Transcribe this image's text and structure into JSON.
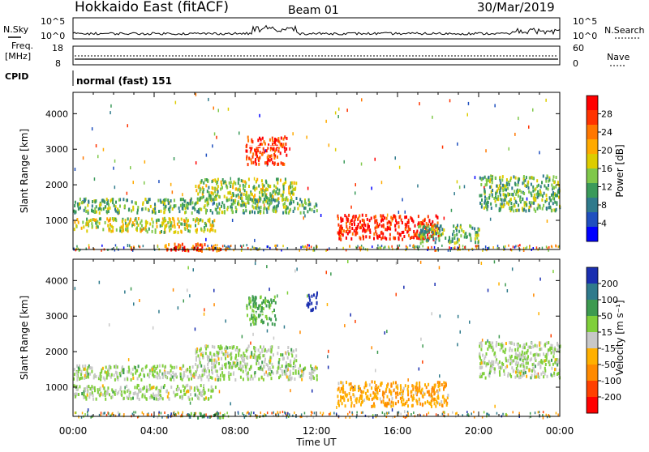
{
  "header": {
    "site": "Hokkaido East (fitACF)",
    "beam": "Beam 01",
    "date": "30/Mar/2019"
  },
  "noise_panel": {
    "left_label": "N.Sky",
    "right_label": "N.Search",
    "scale_top": "10^5",
    "scale_bottom": "10^0"
  },
  "freq_panel": {
    "label_line1": "Freq.",
    "label_line2": "[MHz]",
    "tick_top": "18",
    "tick_bottom": "8",
    "right_label": "Nave",
    "right_tick_top": "60",
    "right_tick_bottom": "0"
  },
  "cpid_panel": {
    "label": "CPID",
    "mode": "normal (fast) 151"
  },
  "power_colorbar": {
    "title": "Power [dB]",
    "ticks": [
      "28",
      "24",
      "20",
      "16",
      "12",
      "8",
      "4"
    ],
    "colors": [
      "#ff0000",
      "#ff3300",
      "#ff7700",
      "#ffaa00",
      "#ddcc00",
      "#7fc84a",
      "#3a9a5a",
      "#2f7a8c",
      "#1f4fbf",
      "#0000ff"
    ]
  },
  "velocity_colorbar": {
    "title": "Velocity [m s⁻¹]",
    "ticks": [
      "200",
      "100",
      "50",
      "15",
      "-15",
      "-50",
      "-100",
      "-200"
    ],
    "colors": [
      "#1a2fb0",
      "#2f7a8c",
      "#3d9a50",
      "#7fcf3a",
      "#c8c8c8",
      "#ffb000",
      "#ff8a00",
      "#ff4000",
      "#ff0000"
    ]
  },
  "chart_data": [
    {
      "type": "heatmap",
      "name": "power",
      "ylabel": "Slant Range [km]",
      "yticks": [
        1000,
        2000,
        3000,
        4000
      ],
      "ylim": [
        180,
        4600
      ],
      "xlim": [
        0,
        24
      ],
      "xticks": [
        "00:00",
        "04:00",
        "08:00",
        "12:00",
        "16:00",
        "20:00",
        "00:00"
      ],
      "units": "dB",
      "regions": [
        {
          "t0": 0.0,
          "t1": 12.0,
          "r0": 1250,
          "r1": 1650,
          "value": 14
        },
        {
          "t0": 0.0,
          "t1": 7.0,
          "r0": 700,
          "r1": 1100,
          "value": 18
        },
        {
          "t0": 4.5,
          "t1": 7.5,
          "r0": 180,
          "r1": 380,
          "value": 26
        },
        {
          "t0": 6.0,
          "t1": 11.0,
          "r0": 1600,
          "r1": 2200,
          "value": 16
        },
        {
          "t0": 8.5,
          "t1": 10.5,
          "r0": 2600,
          "r1": 3400,
          "value": 28
        },
        {
          "t0": 13.0,
          "t1": 18.0,
          "r0": 500,
          "r1": 1200,
          "value": 28
        },
        {
          "t0": 17.0,
          "t1": 20.0,
          "r0": 400,
          "r1": 900,
          "value": 14
        },
        {
          "t0": 20.0,
          "t1": 24.0,
          "r0": 1300,
          "r1": 2300,
          "value": 14
        }
      ]
    },
    {
      "type": "heatmap",
      "name": "velocity",
      "xlabel": "Time UT",
      "ylabel": "Slant Range [km]",
      "yticks": [
        1000,
        2000,
        3000,
        4000
      ],
      "ylim": [
        180,
        4600
      ],
      "xlim": [
        0,
        24
      ],
      "xticks": [
        "00:00",
        "04:00",
        "08:00",
        "12:00",
        "16:00",
        "20:00",
        "00:00"
      ],
      "units": "m s-1",
      "regions": [
        {
          "t0": 0.0,
          "t1": 12.0,
          "r0": 1250,
          "r1": 1650,
          "value": 0
        },
        {
          "t0": 0.0,
          "t1": 7.0,
          "r0": 700,
          "r1": 1100,
          "value": 0
        },
        {
          "t0": 5.5,
          "t1": 7.5,
          "r0": 180,
          "r1": 320,
          "value": 50
        },
        {
          "t0": 6.0,
          "t1": 11.0,
          "r0": 1600,
          "r1": 2200,
          "value": 0
        },
        {
          "t0": 8.5,
          "t1": 10.0,
          "r0": 2800,
          "r1": 3600,
          "value": 40
        },
        {
          "t0": 11.5,
          "t1": 12.0,
          "r0": 3200,
          "r1": 3700,
          "value": 200
        },
        {
          "t0": 13.0,
          "t1": 18.5,
          "r0": 500,
          "r1": 1200,
          "value": -60
        },
        {
          "t0": 20.0,
          "t1": 24.0,
          "r0": 1300,
          "r1": 2300,
          "value": 0
        }
      ]
    }
  ]
}
